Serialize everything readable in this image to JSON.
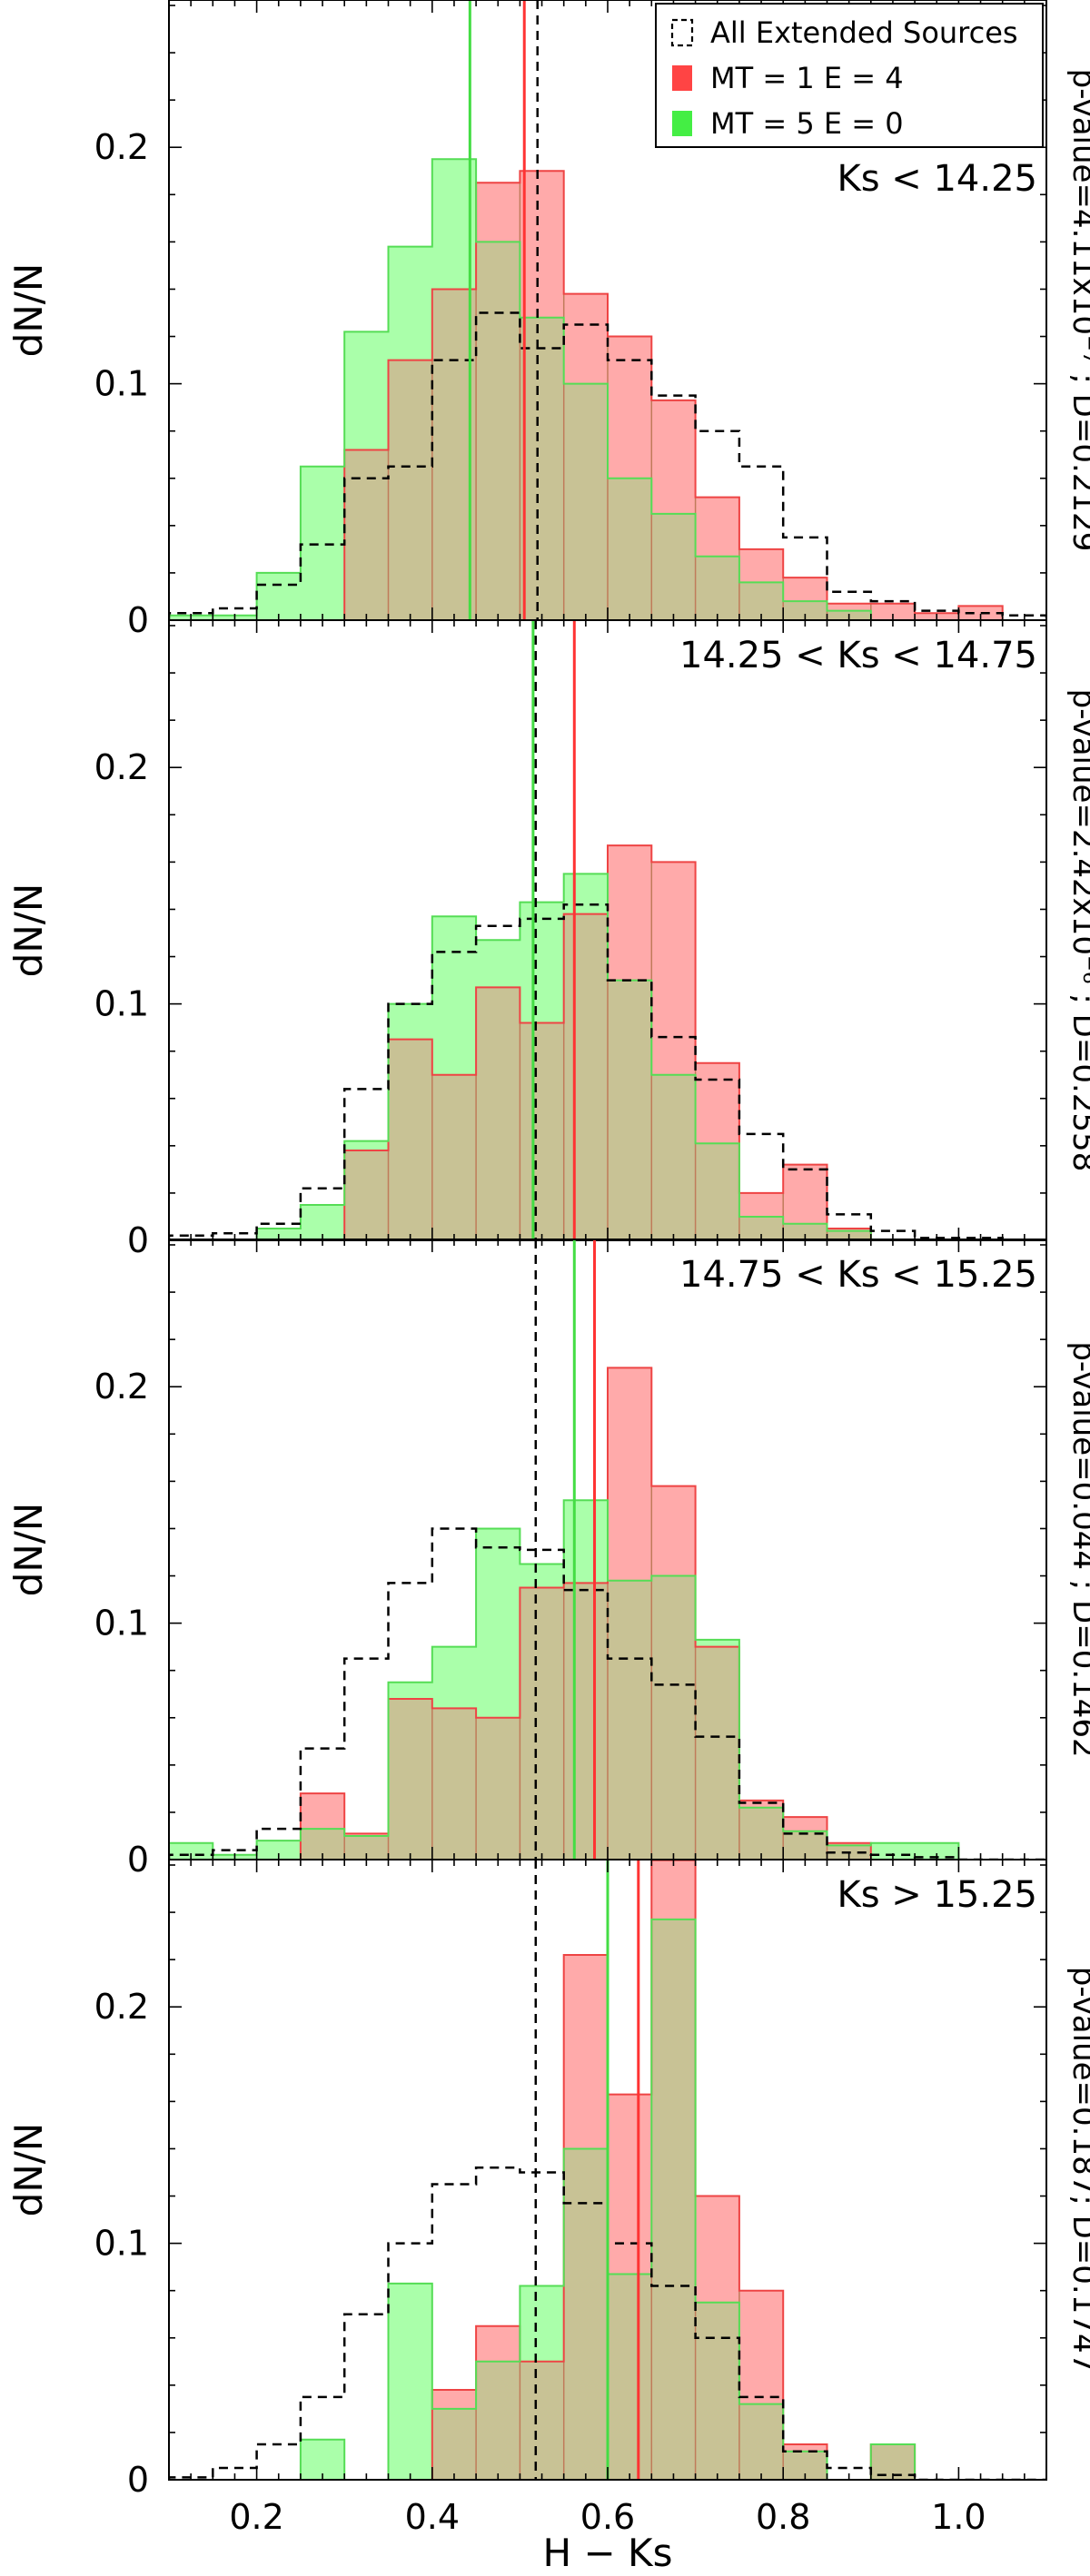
{
  "chart_data": {
    "type": "step-histogram",
    "xlabel": "H − Ks",
    "ylabel": "dN/N",
    "xlim": [
      0.1,
      1.1
    ],
    "xticks": [
      0.2,
      0.4,
      0.6,
      0.8,
      1.0
    ],
    "xtick_labels": [
      "0.2",
      "0.4",
      "0.6",
      "0.8",
      "1.0"
    ],
    "bin_width": 0.05,
    "bin_starts": [
      0.1,
      0.15,
      0.2,
      0.25,
      0.3,
      0.35,
      0.4,
      0.45,
      0.5,
      0.55,
      0.6,
      0.65,
      0.7,
      0.75,
      0.8,
      0.85,
      0.9,
      0.95,
      1.0,
      1.05
    ],
    "legend": {
      "position": "top-right",
      "entries": [
        {
          "label": "All Extended Sources",
          "color": "#000000",
          "style": "dashed"
        },
        {
          "label": "MT = 1 E = 4",
          "color": "#ff4444",
          "style": "fill"
        },
        {
          "label": "MT = 5 E = 0",
          "color": "#44ee44",
          "style": "fill"
        }
      ]
    },
    "colors": {
      "red_fill": "#ffaaaa",
      "red_line": "#ee4444",
      "green_fill": "#aaffaa",
      "green_line": "#55dd55",
      "overlap": "#c8c295",
      "dashed": "#000000"
    },
    "panels": [
      {
        "label": "Ks < 14.25",
        "stat": "p-value=4.11x10⁻⁷ ; D=0.2129",
        "ylim": [
          0,
          0.26
        ],
        "yticks": [
          0,
          0.1,
          0.2
        ],
        "ytick_labels": [
          "0",
          "0.1",
          "0.2"
        ],
        "all_sources": [
          0.003,
          0.005,
          0.015,
          0.032,
          0.06,
          0.065,
          0.11,
          0.13,
          0.115,
          0.125,
          0.11,
          0.095,
          0.08,
          0.065,
          0.035,
          0.012,
          0.008,
          0.004,
          0.003,
          0.002
        ],
        "red": [
          0,
          0,
          0,
          0,
          0.072,
          0.11,
          0.14,
          0.185,
          0.19,
          0.138,
          0.12,
          0.093,
          0.052,
          0.03,
          0.018,
          0.007,
          0.007,
          0.003,
          0.006,
          0
        ],
        "green": [
          0.002,
          0.002,
          0.02,
          0.065,
          0.122,
          0.158,
          0.195,
          0.16,
          0.128,
          0.1,
          0.06,
          0.045,
          0.027,
          0.016,
          0.008,
          0.004,
          0,
          0,
          0,
          0
        ],
        "mean_all": 0.52,
        "mean_red": 0.505,
        "mean_green": 0.443
      },
      {
        "label": "14.25 < Ks < 14.75",
        "stat": "p-value=2.42x10⁻⁶ ; D=0.2558",
        "ylim": [
          0,
          0.26
        ],
        "yticks": [
          0,
          0.1,
          0.2
        ],
        "ytick_labels": [
          "0",
          "0.1",
          "0.2"
        ],
        "all_sources": [
          0.002,
          0.003,
          0.007,
          0.022,
          0.064,
          0.1,
          0.122,
          0.133,
          0.136,
          0.142,
          0.11,
          0.086,
          0.068,
          0.045,
          0.03,
          0.011,
          0.004,
          0.001,
          0.001,
          0
        ],
        "red": [
          0,
          0,
          0,
          0,
          0.038,
          0.085,
          0.07,
          0.107,
          0.092,
          0.138,
          0.167,
          0.16,
          0.075,
          0.02,
          0.032,
          0.005,
          0,
          0,
          0,
          0
        ],
        "green": [
          0,
          0,
          0.005,
          0.015,
          0.042,
          0.1,
          0.137,
          0.127,
          0.143,
          0.155,
          0.11,
          0.07,
          0.041,
          0.01,
          0.007,
          0.004,
          0,
          0,
          0,
          0
        ],
        "mean_all": 0.518,
        "mean_red": 0.562,
        "mean_green": 0.515
      },
      {
        "label": "14.75 < Ks < 15.25",
        "stat": "p-value=0.044 ; D=0.1462",
        "ylim": [
          0,
          0.26
        ],
        "yticks": [
          0,
          0.1,
          0.2
        ],
        "ytick_labels": [
          "0",
          "0.1",
          "0.2"
        ],
        "all_sources": [
          0.002,
          0.004,
          0.013,
          0.047,
          0.085,
          0.117,
          0.14,
          0.132,
          0.131,
          0.114,
          0.085,
          0.074,
          0.052,
          0.024,
          0.011,
          0.003,
          0.002,
          0.001,
          0,
          0
        ],
        "red": [
          0,
          0,
          0,
          0.028,
          0.011,
          0.068,
          0.064,
          0.06,
          0.115,
          0.117,
          0.208,
          0.158,
          0.09,
          0.025,
          0.018,
          0.007,
          0,
          0,
          0,
          0
        ],
        "green": [
          0.007,
          0.002,
          0.008,
          0.013,
          0.01,
          0.075,
          0.09,
          0.14,
          0.125,
          0.152,
          0.118,
          0.12,
          0.093,
          0.022,
          0.012,
          0.006,
          0.007,
          0.007,
          0,
          0
        ],
        "mean_all": 0.518,
        "mean_red": 0.585,
        "mean_green": 0.562
      },
      {
        "label": "Ks > 15.25",
        "stat": "p-value=0.187; D=0.1747",
        "ylim": [
          0,
          0.26
        ],
        "yticks": [
          0,
          0.1,
          0.2
        ],
        "ytick_labels": [
          "0",
          "0.1",
          "0.2"
        ],
        "all_sources": [
          0.001,
          0.005,
          0.015,
          0.035,
          0.07,
          0.1,
          0.125,
          0.132,
          0.13,
          0.117,
          0.1,
          0.082,
          0.06,
          0.035,
          0.012,
          0.005,
          0.002,
          0,
          0,
          0
        ],
        "red": [
          0,
          0,
          0,
          0,
          0,
          0,
          0.038,
          0.065,
          0.05,
          0.222,
          0.163,
          0.262,
          0.12,
          0.08,
          0.015,
          0,
          0.015,
          0,
          0,
          0
        ],
        "green": [
          0,
          0,
          0,
          0.017,
          0,
          0.083,
          0.03,
          0.05,
          0.082,
          0.14,
          0.087,
          0.237,
          0.075,
          0.032,
          0.012,
          0,
          0.015,
          0,
          0,
          0
        ],
        "mean_all": 0.518,
        "mean_red": 0.635,
        "mean_green": 0.6
      }
    ]
  }
}
